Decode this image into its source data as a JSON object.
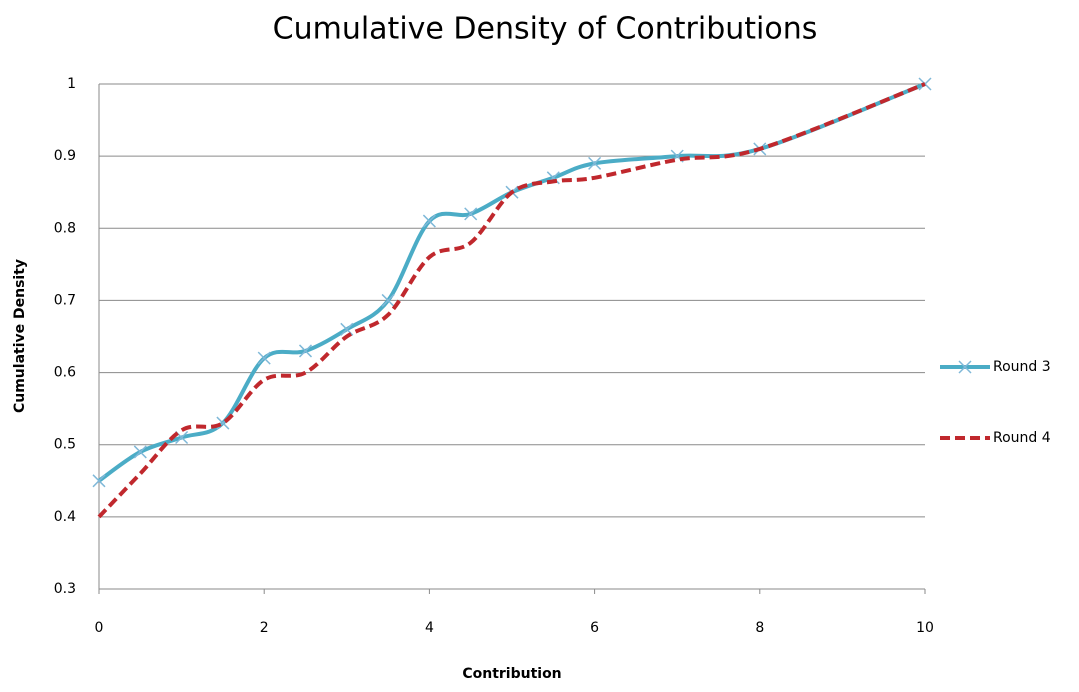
{
  "chart_data": {
    "type": "line",
    "title": "Cumulative Density of Contributions",
    "x_label": "Contribution",
    "y_label": "Cumulative Density",
    "x": [
      0,
      0.5,
      1,
      1.5,
      2,
      2.5,
      3,
      3.5,
      4,
      4.5,
      5,
      5.5,
      6,
      7,
      8,
      10
    ],
    "series": [
      {
        "name": "Round 3",
        "color": "#4bacc6",
        "dashed": false,
        "marker": "x",
        "values": [
          0.45,
          0.49,
          0.51,
          0.53,
          0.62,
          0.63,
          0.66,
          0.7,
          0.81,
          0.82,
          0.85,
          0.87,
          0.89,
          0.9,
          0.91,
          1
        ]
      },
      {
        "name": "Round 4",
        "color": "#c0282d",
        "dashed": true,
        "marker": "none",
        "values": [
          0.4,
          0.46,
          0.52,
          0.53,
          0.59,
          0.6,
          0.65,
          0.68,
          0.76,
          0.78,
          0.85,
          0.865,
          0.87,
          0.895,
          0.91,
          1
        ]
      }
    ],
    "xlim": [
      0,
      10
    ],
    "xticks": [
      0,
      2,
      4,
      6,
      8,
      10
    ],
    "ylim": [
      0.3,
      1
    ],
    "yticks": [
      0.3,
      0.4,
      0.5,
      0.6,
      0.7,
      0.8,
      0.9,
      1
    ],
    "grid": true,
    "legend": "right",
    "smooth": true
  }
}
